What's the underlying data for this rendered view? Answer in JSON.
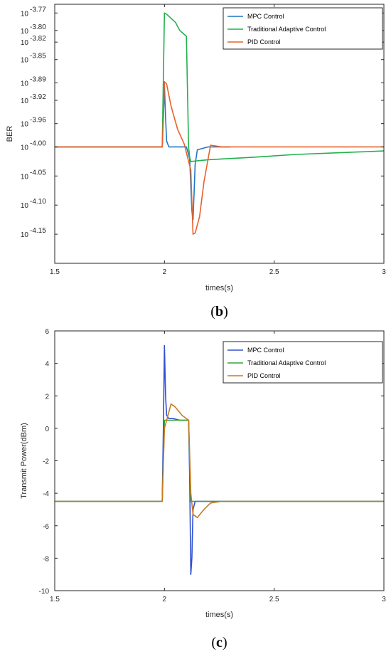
{
  "chart_data": [
    {
      "type": "line",
      "caption": {
        "open": "(",
        "letter": "b",
        "close": ")"
      },
      "xlabel": "times(s)",
      "ylabel": "BER",
      "xlim": [
        1.5,
        3
      ],
      "ylim": [
        -4.2,
        -3.755
      ],
      "x_ticks": [
        "1.5",
        "2",
        "2.5",
        "3"
      ],
      "y_ticks": [
        {
          "value": -3.77,
          "base": "10",
          "exp": "-3.77"
        },
        {
          "value": -3.8,
          "base": "10",
          "exp": "-3.80"
        },
        {
          "value": -3.82,
          "base": "10",
          "exp": "-3.82"
        },
        {
          "value": -3.85,
          "base": "10",
          "exp": "-3.85"
        },
        {
          "value": -3.89,
          "base": "10",
          "exp": "-3.89"
        },
        {
          "value": -3.92,
          "base": "10",
          "exp": "-3.92"
        },
        {
          "value": -3.96,
          "base": "10",
          "exp": "-3.96"
        },
        {
          "value": -4.0,
          "base": "10",
          "exp": "-4.00"
        },
        {
          "value": -4.05,
          "base": "10",
          "exp": "-4.05"
        },
        {
          "value": -4.1,
          "base": "10",
          "exp": "-4.10"
        },
        {
          "value": -4.15,
          "base": "10",
          "exp": "-4.15"
        }
      ],
      "legend_position": "top-right",
      "series": [
        {
          "name": "MPC Control",
          "color": "#1f77c4",
          "x": [
            1.5,
            1.6,
            1.7,
            1.8,
            1.9,
            1.99,
            1.995,
            2.0,
            2.005,
            2.01,
            2.02,
            2.04,
            2.07,
            2.1,
            2.115,
            2.125,
            2.13,
            2.135,
            2.14,
            2.15,
            2.2,
            2.3
          ],
          "y": [
            -4.0,
            -4.0,
            -4.0,
            -4.0,
            -4.0,
            -4.0,
            -3.95,
            -3.895,
            -3.95,
            -3.99,
            -4.0,
            -4.0,
            -4.0,
            -4.0,
            -4.02,
            -4.11,
            -4.125,
            -4.08,
            -4.03,
            -4.005,
            -4.0,
            -4.0
          ]
        },
        {
          "name": "Traditional Adaptive Control",
          "color": "#22b14c",
          "x": [
            1.5,
            1.6,
            1.7,
            1.8,
            1.9,
            1.99,
            2.0,
            2.01,
            2.05,
            2.07,
            2.1,
            2.11,
            2.115,
            2.12,
            2.2,
            2.4,
            2.6,
            2.8,
            3.0
          ],
          "y": [
            -4.0,
            -4.0,
            -4.0,
            -4.0,
            -4.0,
            -4.0,
            -3.77,
            -3.772,
            -3.786,
            -3.8,
            -3.81,
            -4.0,
            -4.018,
            -4.025,
            -4.022,
            -4.018,
            -4.013,
            -4.01,
            -4.007
          ]
        },
        {
          "name": "PID Control",
          "color": "#e8622a",
          "x": [
            1.5,
            1.6,
            1.7,
            1.8,
            1.9,
            1.99,
            1.995,
            2.0,
            2.01,
            2.03,
            2.06,
            2.09,
            2.12,
            2.13,
            2.14,
            2.16,
            2.18,
            2.21,
            2.26,
            2.4,
            2.6,
            2.8,
            3.0
          ],
          "y": [
            -4.0,
            -4.0,
            -4.0,
            -4.0,
            -4.0,
            -4.0,
            -3.95,
            -3.888,
            -3.892,
            -3.93,
            -3.97,
            -3.995,
            -4.04,
            -4.15,
            -4.148,
            -4.12,
            -4.06,
            -3.997,
            -4.0,
            -4.0,
            -4.0,
            -4.0,
            -4.0
          ]
        }
      ]
    },
    {
      "type": "line",
      "caption": {
        "open": "(",
        "letter": "c",
        "close": ")"
      },
      "xlabel": "times(s)",
      "ylabel": "Transmit Power(dBm)",
      "xlim": [
        1.5,
        3
      ],
      "ylim": [
        -10,
        6
      ],
      "x_ticks": [
        "1.5",
        "2",
        "2.5",
        "3"
      ],
      "y_ticks": [
        {
          "value": 6,
          "label": "6"
        },
        {
          "value": 4,
          "label": "4"
        },
        {
          "value": 2,
          "label": "2"
        },
        {
          "value": 0,
          "label": "0"
        },
        {
          "value": -2,
          "label": "-2"
        },
        {
          "value": -4,
          "label": "-4"
        },
        {
          "value": -6,
          "label": "-6"
        },
        {
          "value": -8,
          "label": "-8"
        },
        {
          "value": -10,
          "label": "-10"
        }
      ],
      "legend_position": "top-right",
      "series": [
        {
          "name": "MPC Control",
          "color": "#3050d0",
          "x": [
            1.5,
            1.6,
            1.7,
            1.8,
            1.9,
            1.99,
            1.995,
            2.0,
            2.005,
            2.01,
            2.02,
            2.04,
            2.07,
            2.1,
            2.11,
            2.115,
            2.12,
            2.125,
            2.13,
            2.14,
            2.16,
            2.2,
            2.4,
            2.6,
            2.8,
            3.0
          ],
          "y": [
            -4.5,
            -4.5,
            -4.5,
            -4.5,
            -4.5,
            -4.5,
            0.0,
            5.1,
            2.0,
            0.8,
            0.6,
            0.6,
            0.5,
            0.5,
            0.5,
            -3.0,
            -9.0,
            -8.0,
            -5.0,
            -4.5,
            -4.5,
            -4.5,
            -4.5,
            -4.5,
            -4.5,
            -4.5
          ]
        },
        {
          "name": "Traditional Adaptive Control",
          "color": "#3aa23a",
          "x": [
            1.5,
            1.6,
            1.7,
            1.8,
            1.9,
            1.99,
            2.0,
            2.005,
            2.05,
            2.1,
            2.11,
            2.12,
            2.13,
            2.2,
            2.4,
            2.6,
            2.8,
            3.0
          ],
          "y": [
            -4.5,
            -4.5,
            -4.5,
            -4.5,
            -4.5,
            -4.5,
            0.5,
            0.5,
            0.5,
            0.5,
            0.5,
            -4.5,
            -4.5,
            -4.5,
            -4.5,
            -4.5,
            -4.5,
            -4.5
          ]
        },
        {
          "name": "PID Control",
          "color": "#c87a1e",
          "x": [
            1.5,
            1.6,
            1.7,
            1.8,
            1.9,
            1.99,
            2.0,
            2.01,
            2.03,
            2.05,
            2.08,
            2.11,
            2.12,
            2.13,
            2.15,
            2.18,
            2.21,
            2.26,
            2.4,
            2.6,
            2.8,
            3.0
          ],
          "y": [
            -4.5,
            -4.5,
            -4.5,
            -4.5,
            -4.5,
            -4.5,
            0.0,
            0.5,
            1.5,
            1.3,
            0.8,
            0.5,
            -4.0,
            -5.3,
            -5.5,
            -5.0,
            -4.6,
            -4.5,
            -4.5,
            -4.5,
            -4.5,
            -4.5
          ]
        }
      ]
    }
  ]
}
